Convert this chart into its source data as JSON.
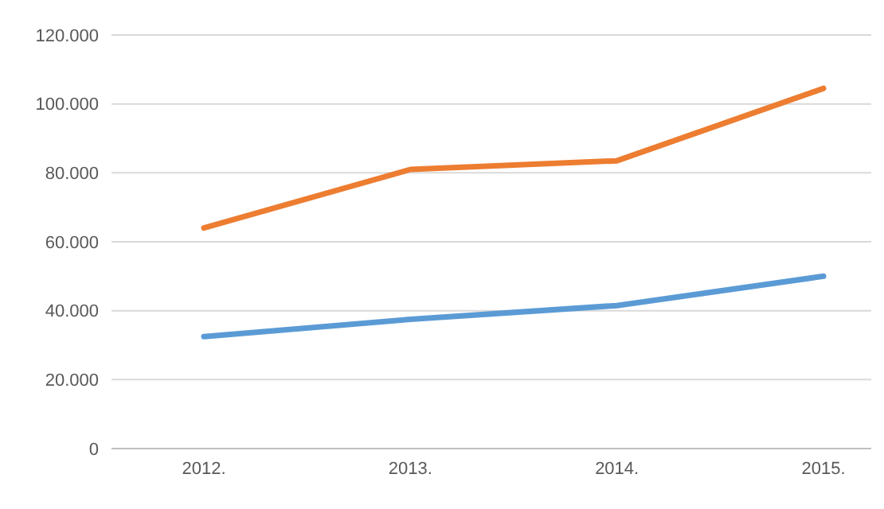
{
  "chart_data": {
    "type": "line",
    "categories": [
      "2012.",
      "2013.",
      "2014.",
      "2015."
    ],
    "series": [
      {
        "color": "#5b9bd5",
        "values": [
          32500,
          37500,
          41500,
          50000
        ]
      },
      {
        "color": "#ed7d31",
        "values": [
          64000,
          81000,
          83500,
          104500
        ]
      }
    ],
    "ylim": [
      0,
      120000
    ],
    "yticks": [
      {
        "value": 0,
        "label": "0"
      },
      {
        "value": 20000,
        "label": "20.000"
      },
      {
        "value": 40000,
        "label": "40.000"
      },
      {
        "value": 60000,
        "label": "60.000"
      },
      {
        "value": 80000,
        "label": "80.000"
      },
      {
        "value": 100000,
        "label": "100.000"
      },
      {
        "value": 120000,
        "label": "120.000"
      }
    ],
    "grid": "y",
    "marker": "none",
    "line_style": "solid"
  }
}
